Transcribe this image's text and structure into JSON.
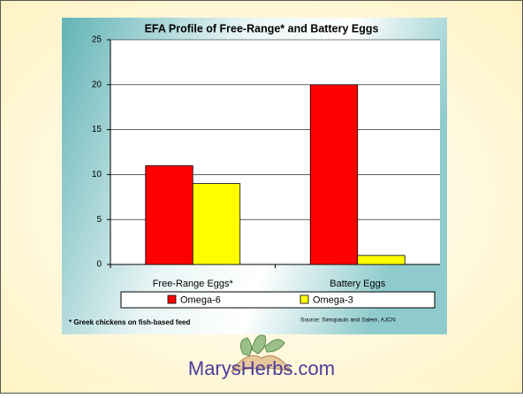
{
  "chart_data": {
    "type": "bar",
    "title": "EFA Profile of Free-Range* and Battery Eggs",
    "categories": [
      "Free-Range Eggs*",
      "Battery Eggs"
    ],
    "series": [
      {
        "name": "Omega-6",
        "color": "#ff0000",
        "values": [
          11,
          20
        ]
      },
      {
        "name": "Omega-3",
        "color": "#ffff00",
        "values": [
          9,
          1
        ]
      }
    ],
    "ylim": [
      0,
      25
    ],
    "yticks": [
      0,
      5,
      10,
      15,
      20,
      25
    ],
    "grid": true,
    "legend": "bottom",
    "footnote": "* Greek chickens on fish-based feed",
    "source": "Source: Simopauls and Salem, AJCN"
  },
  "footer": {
    "brand": "MarysHerbs.com"
  }
}
